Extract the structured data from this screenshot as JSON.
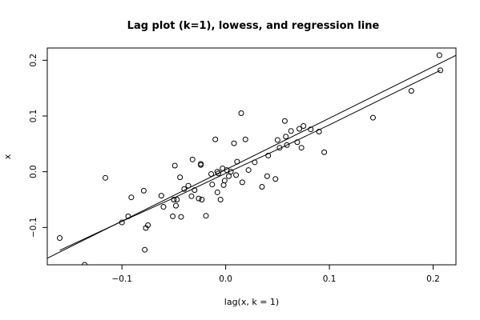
{
  "chart_data": {
    "type": "scatter",
    "title": "Lag plot (k=1), lowess, and regression line",
    "xlabel": "lag(x, k = 1)",
    "ylabel": "x",
    "xlim": [
      -0.172,
      0.222
    ],
    "ylim": [
      -0.167,
      0.222
    ],
    "x_ticks": [
      -0.1,
      0.0,
      0.1,
      0.2
    ],
    "x_tick_labels": [
      "−0.1",
      "0.0",
      "0.1",
      "0.2"
    ],
    "y_ticks": [
      -0.1,
      0.0,
      0.1,
      0.2
    ],
    "y_tick_labels": [
      "−0.1",
      "0.0",
      "0.1",
      "0.2"
    ],
    "grid": false,
    "legend": "none",
    "points": [
      [
        -0.16,
        -0.119
      ],
      [
        -0.136,
        -0.167
      ],
      [
        -0.116,
        -0.011
      ],
      [
        -0.1,
        -0.091
      ],
      [
        -0.094,
        -0.08
      ],
      [
        -0.091,
        -0.046
      ],
      [
        -0.079,
        -0.034
      ],
      [
        -0.078,
        -0.14
      ],
      [
        -0.077,
        -0.101
      ],
      [
        -0.075,
        -0.096
      ],
      [
        -0.062,
        -0.043
      ],
      [
        -0.06,
        -0.063
      ],
      [
        -0.051,
        -0.08
      ],
      [
        -0.05,
        -0.05
      ],
      [
        -0.049,
        0.011
      ],
      [
        -0.048,
        -0.061
      ],
      [
        -0.047,
        -0.05
      ],
      [
        -0.044,
        -0.01
      ],
      [
        -0.043,
        -0.081
      ],
      [
        -0.04,
        -0.031
      ],
      [
        -0.036,
        -0.025
      ],
      [
        -0.033,
        -0.044
      ],
      [
        -0.032,
        0.022
      ],
      [
        -0.03,
        -0.033
      ],
      [
        -0.026,
        -0.048
      ],
      [
        -0.024,
        0.012
      ],
      [
        -0.024,
        0.014
      ],
      [
        -0.023,
        -0.05
      ],
      [
        -0.019,
        -0.079
      ],
      [
        -0.014,
        -0.004
      ],
      [
        -0.013,
        -0.023
      ],
      [
        -0.01,
        0.058
      ],
      [
        -0.008,
        0.0
      ],
      [
        -0.008,
        -0.037
      ],
      [
        -0.007,
        -0.003
      ],
      [
        -0.005,
        -0.05
      ],
      [
        -0.003,
        0.006
      ],
      [
        -0.002,
        -0.024
      ],
      [
        -0.001,
        -0.016
      ],
      [
        0.001,
        0.003
      ],
      [
        0.003,
        -0.008
      ],
      [
        0.005,
        0.0
      ],
      [
        0.008,
        0.051
      ],
      [
        0.01,
        -0.006
      ],
      [
        0.011,
        0.018
      ],
      [
        0.015,
        0.105
      ],
      [
        0.016,
        -0.019
      ],
      [
        0.019,
        0.058
      ],
      [
        0.022,
        0.003
      ],
      [
        0.028,
        0.017
      ],
      [
        0.035,
        -0.027
      ],
      [
        0.04,
        -0.008
      ],
      [
        0.041,
        0.029
      ],
      [
        0.048,
        -0.013
      ],
      [
        0.05,
        0.057
      ],
      [
        0.052,
        0.043
      ],
      [
        0.057,
        0.091
      ],
      [
        0.058,
        0.063
      ],
      [
        0.059,
        0.048
      ],
      [
        0.063,
        0.073
      ],
      [
        0.069,
        0.053
      ],
      [
        0.071,
        0.077
      ],
      [
        0.073,
        0.043
      ],
      [
        0.075,
        0.082
      ],
      [
        0.082,
        0.076
      ],
      [
        0.09,
        0.072
      ],
      [
        0.095,
        0.035
      ],
      [
        0.142,
        0.097
      ],
      [
        0.179,
        0.145
      ],
      [
        0.206,
        0.209
      ],
      [
        0.207,
        0.182
      ]
    ],
    "regression_line": {
      "intercept": 0.0037,
      "slope": 0.924
    },
    "lowess_curve": [
      [
        -0.16,
        -0.141
      ],
      [
        -0.1,
        -0.089
      ],
      [
        -0.05,
        -0.047
      ],
      [
        0.0,
        -0.003
      ],
      [
        0.05,
        0.04
      ],
      [
        0.1,
        0.084
      ],
      [
        0.15,
        0.13
      ],
      [
        0.207,
        0.182
      ]
    ]
  }
}
